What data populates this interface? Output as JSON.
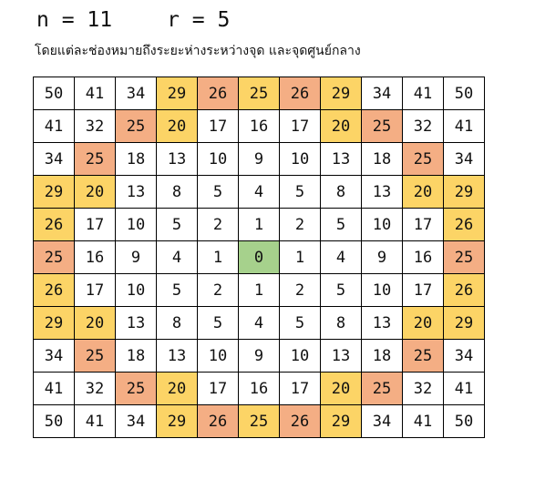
{
  "header": {
    "n_text": "n = 11",
    "r_text": "r = 5"
  },
  "caption": "โดยแต่ละช่องหมายถึงระยะห่างระหว่างจุด และจุดศูนย์กลาง",
  "colors": {
    "empty": "#ffffff",
    "yellow": "#fcd466",
    "orange": "#f4ae84",
    "green": "#a6d18c"
  },
  "grid": {
    "values": [
      [
        50,
        41,
        34,
        29,
        26,
        25,
        26,
        29,
        34,
        41,
        50
      ],
      [
        41,
        32,
        25,
        20,
        17,
        16,
        17,
        20,
        25,
        32,
        41
      ],
      [
        34,
        25,
        18,
        13,
        10,
        9,
        10,
        13,
        18,
        25,
        34
      ],
      [
        29,
        20,
        13,
        8,
        5,
        4,
        5,
        8,
        13,
        20,
        29
      ],
      [
        26,
        17,
        10,
        5,
        2,
        1,
        2,
        5,
        10,
        17,
        26
      ],
      [
        25,
        16,
        9,
        4,
        1,
        0,
        1,
        4,
        9,
        16,
        25
      ],
      [
        26,
        17,
        10,
        5,
        2,
        1,
        2,
        5,
        10,
        17,
        26
      ],
      [
        29,
        20,
        13,
        8,
        5,
        4,
        5,
        8,
        13,
        20,
        29
      ],
      [
        34,
        25,
        18,
        13,
        10,
        9,
        10,
        13,
        18,
        25,
        34
      ],
      [
        41,
        32,
        25,
        20,
        17,
        16,
        17,
        20,
        25,
        32,
        41
      ],
      [
        50,
        41,
        34,
        29,
        26,
        25,
        26,
        29,
        34,
        41,
        50
      ]
    ],
    "highlights": [
      "...yoyoy...",
      "..oy...yo..",
      ".o.......o.",
      "yy.......yy",
      "y.........y",
      "o....g....o",
      "y.........y",
      "yy.......yy",
      ".o.......o.",
      "..oy...yo..",
      "...yoyoy..."
    ]
  }
}
